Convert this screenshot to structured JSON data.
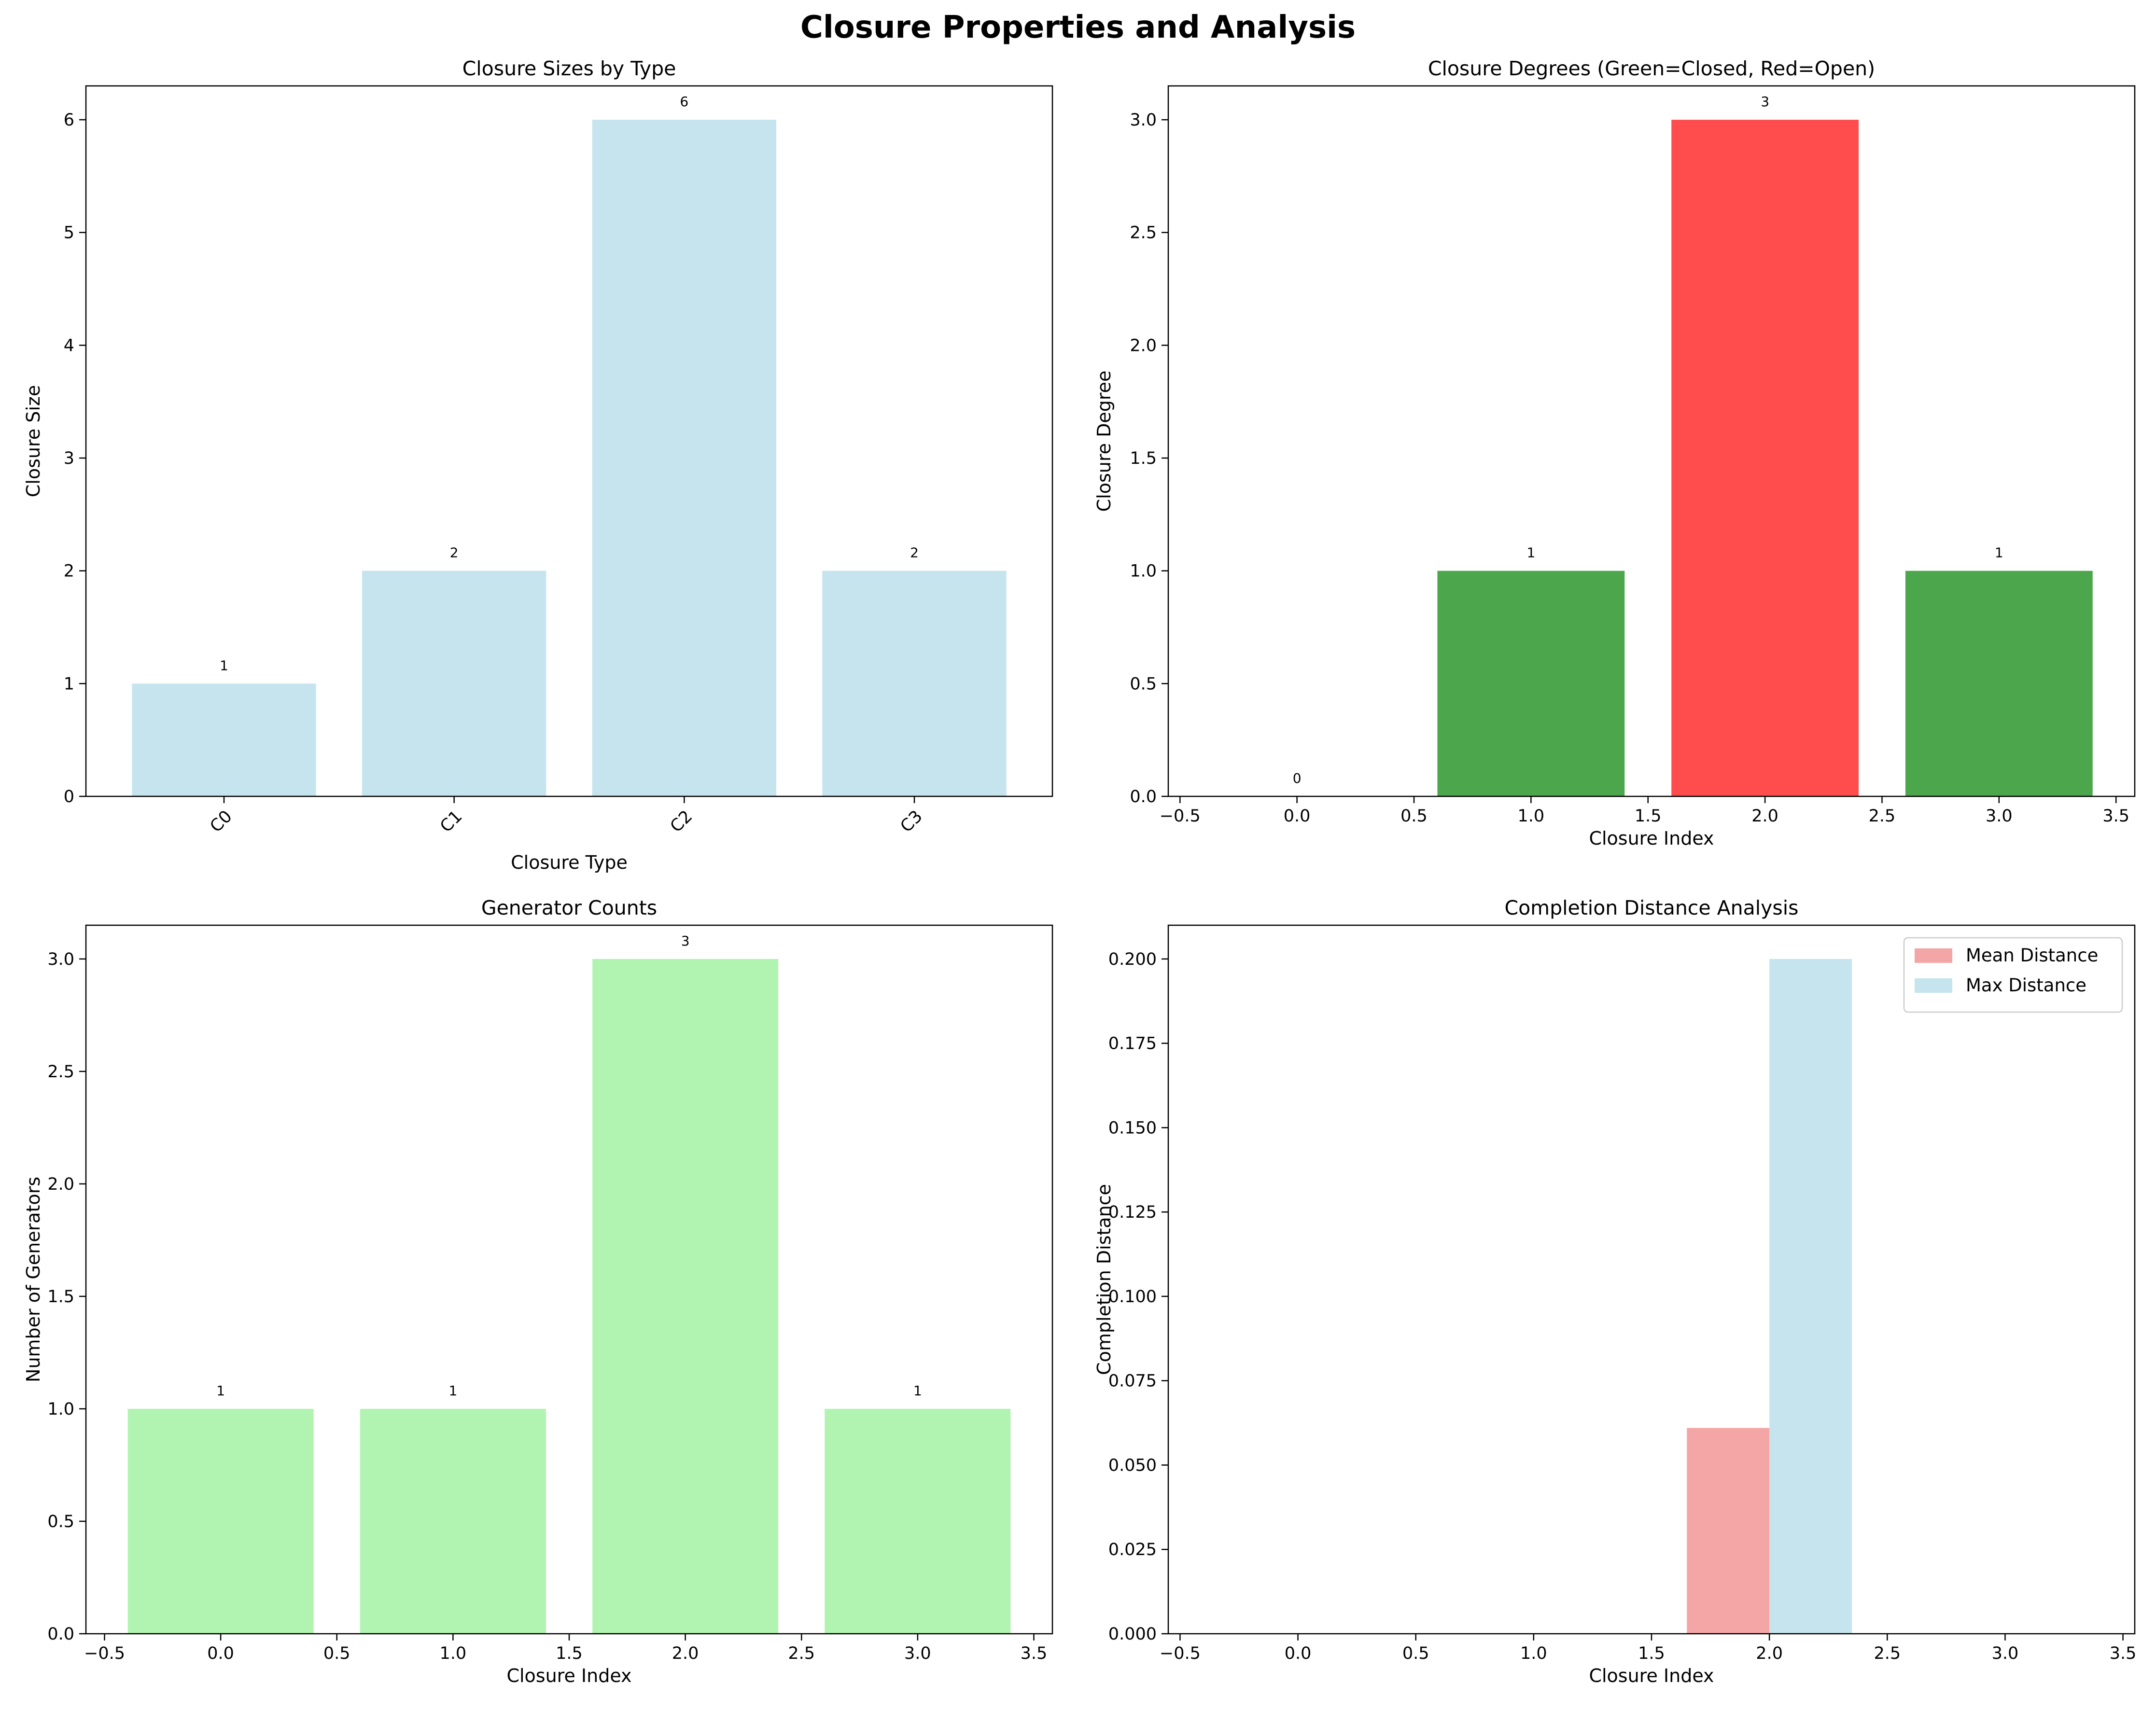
{
  "figure": {
    "title": "Closure Properties and Analysis"
  },
  "chart_data": [
    {
      "id": "sizes",
      "type": "bar",
      "title": "Closure Sizes by Type",
      "xlabel": "Closure Type",
      "ylabel": "Closure Size",
      "x_kind": "category",
      "categories": [
        "C0",
        "C1",
        "C2",
        "C3"
      ],
      "values": [
        1,
        2,
        6,
        2
      ],
      "data_labels": [
        "1",
        "2",
        "6",
        "2"
      ],
      "bar_color": "#add8e6",
      "bar_opacity": 0.7,
      "bar_width": 0.8,
      "xlim": [
        -0.6,
        3.6
      ],
      "ylim": [
        0,
        6.3
      ],
      "yticks": [
        0,
        1,
        2,
        3,
        4,
        5,
        6
      ],
      "ytick_labels": [
        "0",
        "1",
        "2",
        "3",
        "4",
        "5",
        "6"
      ],
      "rotate_xticks": true,
      "grid": false,
      "legend": null
    },
    {
      "id": "degrees",
      "type": "bar",
      "title": "Closure Degrees (Green=Closed, Red=Open)",
      "xlabel": "Closure Index",
      "ylabel": "Closure Degree",
      "x_kind": "numeric",
      "x": [
        0,
        1,
        2,
        3
      ],
      "values": [
        0,
        1,
        3,
        1
      ],
      "data_labels": [
        "0",
        "1",
        "3",
        "1"
      ],
      "bar_colors": [
        "#008000",
        "#008000",
        "#ff0000",
        "#008000"
      ],
      "bar_opacity": 0.7,
      "bar_width": 0.8,
      "xlim": [
        -0.55,
        3.58
      ],
      "xticks": [
        -0.5,
        0,
        0.5,
        1,
        1.5,
        2,
        2.5,
        3,
        3.5
      ],
      "xtick_labels": [
        "−0.5",
        "0.0",
        "0.5",
        "1.0",
        "1.5",
        "2.0",
        "2.5",
        "3.0",
        "3.5"
      ],
      "ylim": [
        0,
        3.15
      ],
      "yticks": [
        0,
        0.5,
        1,
        1.5,
        2,
        2.5,
        3
      ],
      "ytick_labels": [
        "0.0",
        "0.5",
        "1.0",
        "1.5",
        "2.0",
        "2.5",
        "3.0"
      ],
      "grid": false,
      "legend": null
    },
    {
      "id": "generators",
      "type": "bar",
      "title": "Generator Counts",
      "xlabel": "Closure Index",
      "ylabel": "Number of Generators",
      "x_kind": "numeric",
      "x": [
        0,
        1,
        2,
        3
      ],
      "values": [
        1,
        1,
        3,
        1
      ],
      "data_labels": [
        "1",
        "1",
        "3",
        "1"
      ],
      "bar_color": "#90ee90",
      "bar_opacity": 0.7,
      "bar_width": 0.8,
      "xlim": [
        -0.58,
        3.58
      ],
      "xticks": [
        -0.5,
        0,
        0.5,
        1,
        1.5,
        2,
        2.5,
        3,
        3.5
      ],
      "xtick_labels": [
        "−0.5",
        "0.0",
        "0.5",
        "1.0",
        "1.5",
        "2.0",
        "2.5",
        "3.0",
        "3.5"
      ],
      "ylim": [
        0,
        3.15
      ],
      "yticks": [
        0,
        0.5,
        1,
        1.5,
        2,
        2.5,
        3
      ],
      "ytick_labels": [
        "0.0",
        "0.5",
        "1.0",
        "1.5",
        "2.0",
        "2.5",
        "3.0"
      ],
      "grid": false,
      "legend": null
    },
    {
      "id": "distance",
      "type": "bar",
      "title": "Completion Distance Analysis",
      "xlabel": "Closure Index",
      "ylabel": "Completion Distance",
      "x_kind": "numeric",
      "x": [
        0,
        1,
        2,
        3
      ],
      "bar_width": 0.35,
      "series": [
        {
          "name": "Mean Distance",
          "values": [
            0,
            0,
            0.061,
            0
          ],
          "color": "#f08080",
          "opacity": 0.7,
          "offset": -0.175
        },
        {
          "name": "Max Distance",
          "values": [
            0,
            0,
            0.2,
            0
          ],
          "color": "#add8e6",
          "opacity": 0.7,
          "offset": 0.175
        }
      ],
      "xlim": [
        -0.55,
        3.55
      ],
      "xticks": [
        -0.5,
        0,
        0.5,
        1,
        1.5,
        2,
        2.5,
        3,
        3.5
      ],
      "xtick_labels": [
        "−0.5",
        "0.0",
        "0.5",
        "1.0",
        "1.5",
        "2.0",
        "2.5",
        "3.0",
        "3.5"
      ],
      "ylim": [
        0,
        0.21
      ],
      "yticks": [
        0,
        0.025,
        0.05,
        0.075,
        0.1,
        0.125,
        0.15,
        0.175,
        0.2
      ],
      "ytick_labels": [
        "0.000",
        "0.025",
        "0.050",
        "0.075",
        "0.100",
        "0.125",
        "0.150",
        "0.175",
        "0.200"
      ],
      "grid": false,
      "legend": "upper right"
    }
  ]
}
